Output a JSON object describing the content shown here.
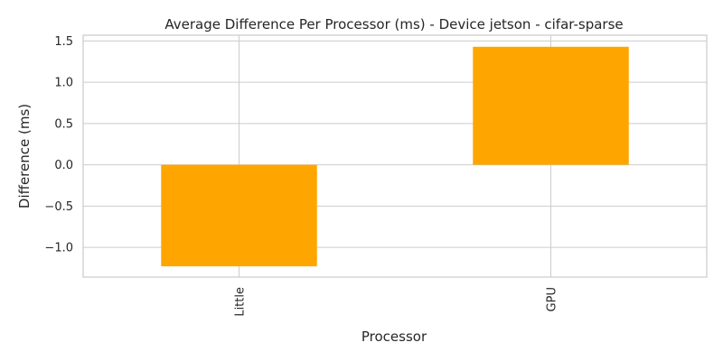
{
  "chart_data": {
    "type": "bar",
    "title": "Average Difference Per Processor (ms) - Device jetson - cifar-sparse",
    "xlabel": "Processor",
    "ylabel": "Difference (ms)",
    "categories": [
      "Little",
      "GPU"
    ],
    "values": [
      -1.23,
      1.43
    ],
    "ylim": [
      -1.36,
      1.57
    ],
    "yticks": [
      -1.0,
      -0.5,
      0.0,
      0.5,
      1.0,
      1.5
    ],
    "ytick_labels": [
      "−1.0",
      "−0.5",
      "0.0",
      "0.5",
      "1.0",
      "1.5"
    ],
    "grid": true,
    "bar_color": "#FFA500",
    "legend": "none"
  }
}
